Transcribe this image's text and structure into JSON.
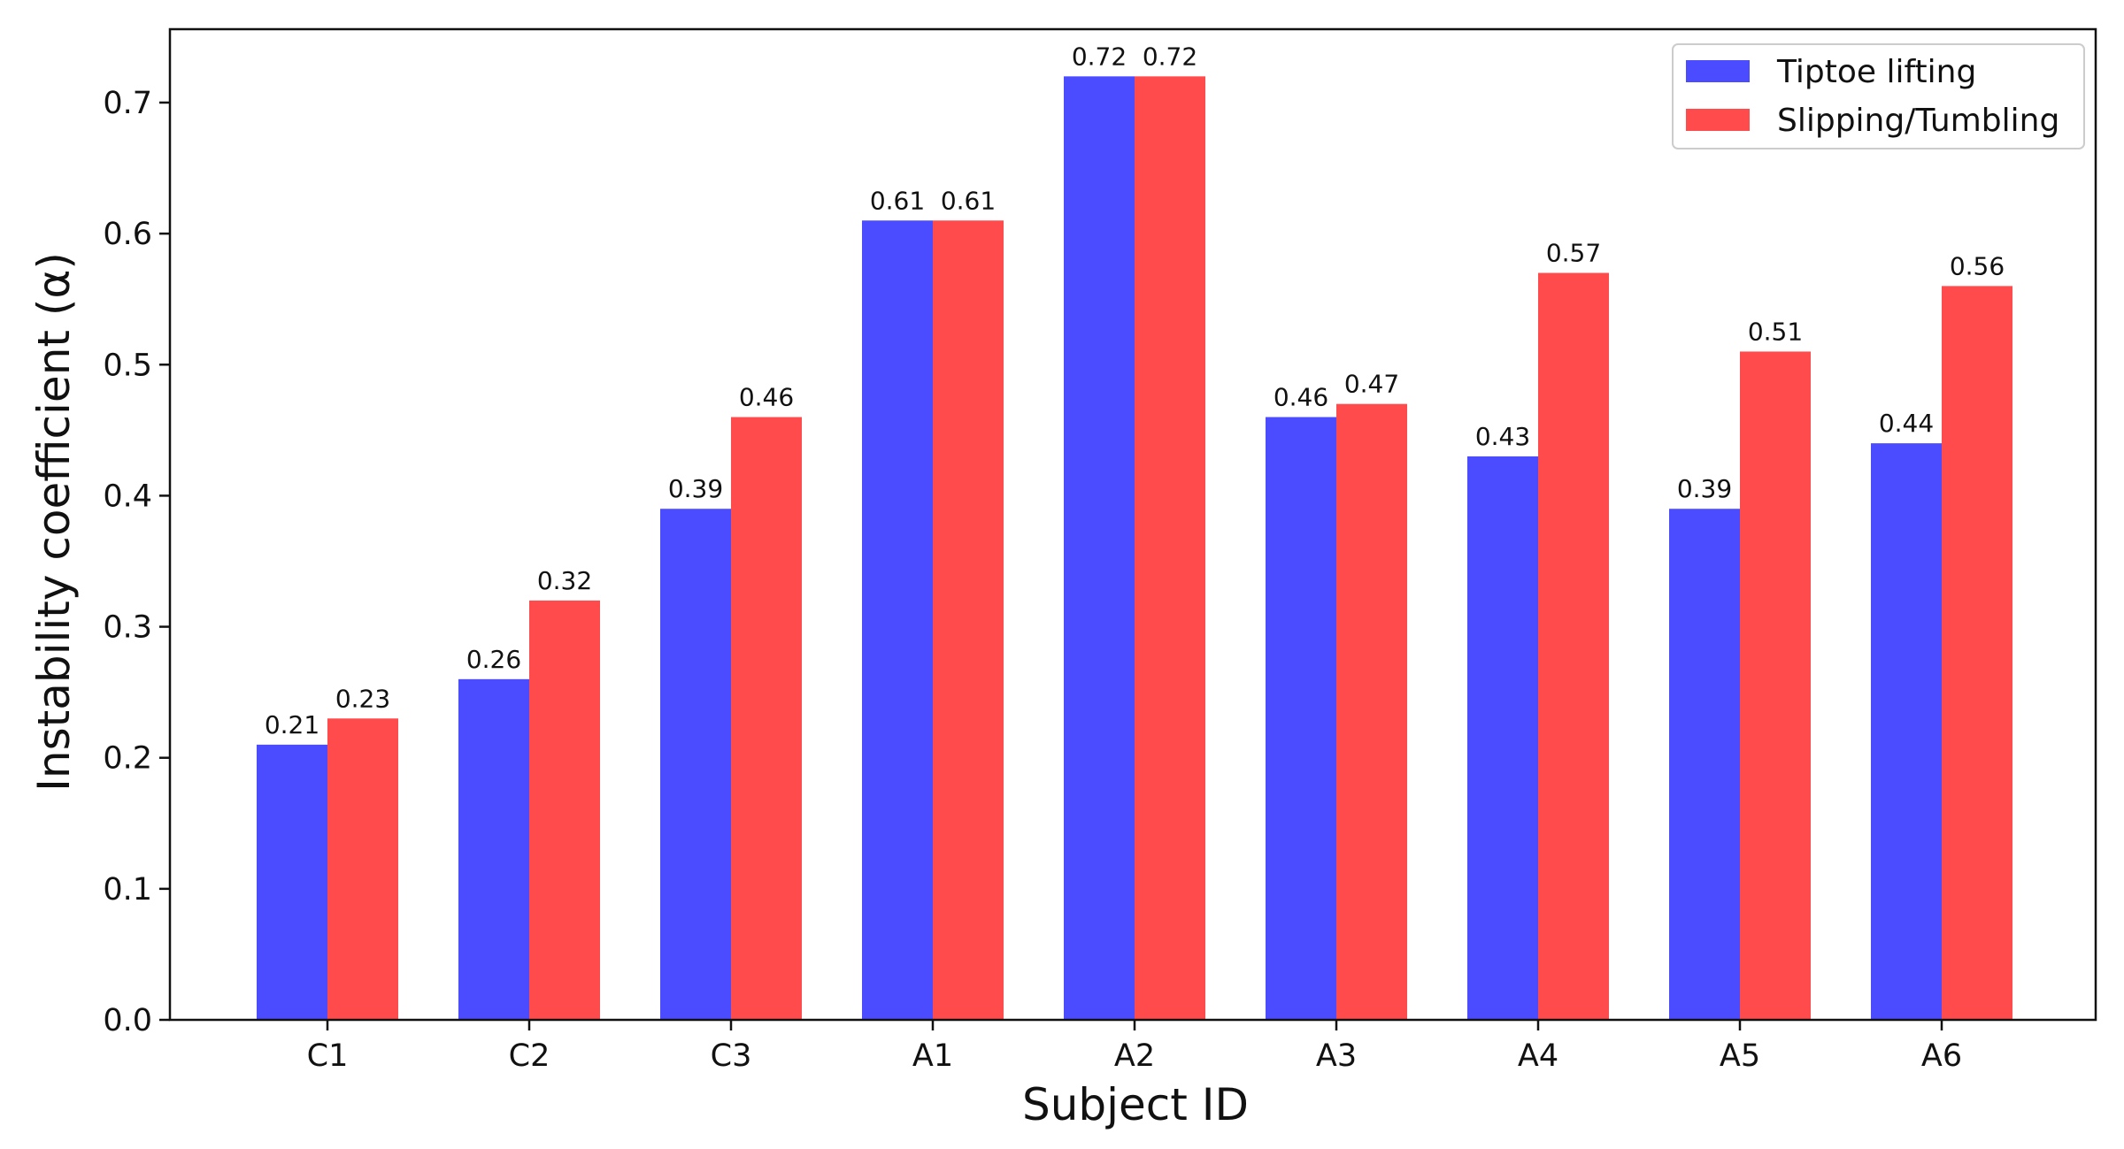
{
  "chart_data": {
    "type": "bar",
    "title": "",
    "xlabel": "Subject ID",
    "ylabel": "Instability coefficient (α)",
    "categories": [
      "C1",
      "C2",
      "C3",
      "A1",
      "A2",
      "A3",
      "A4",
      "A5",
      "A6"
    ],
    "series": [
      {
        "name": "Tiptoe lifting",
        "color": "#4b4bff",
        "values": [
          0.21,
          0.26,
          0.39,
          0.61,
          0.72,
          0.46,
          0.43,
          0.39,
          0.44
        ],
        "labels": [
          "0.21",
          "0.26",
          "0.39",
          "0.61",
          "0.72",
          "0.46",
          "0.43",
          "0.39",
          "0.44"
        ]
      },
      {
        "name": "Slipping/Tumbling",
        "color": "#ff4b4b",
        "values": [
          0.23,
          0.32,
          0.46,
          0.61,
          0.72,
          0.47,
          0.57,
          0.51,
          0.56
        ],
        "labels": [
          "0.23",
          "0.32",
          "0.46",
          "0.61",
          "0.72",
          "0.47",
          "0.57",
          "0.51",
          "0.56"
        ]
      }
    ],
    "ylim": [
      0,
      0.756
    ],
    "yticks": [
      0.0,
      0.1,
      0.2,
      0.3,
      0.4,
      0.5,
      0.6,
      0.7
    ],
    "ytick_labels": [
      "0.0",
      "0.1",
      "0.2",
      "0.3",
      "0.4",
      "0.5",
      "0.6",
      "0.7"
    ],
    "grid": false,
    "legend_position": "top-right"
  }
}
